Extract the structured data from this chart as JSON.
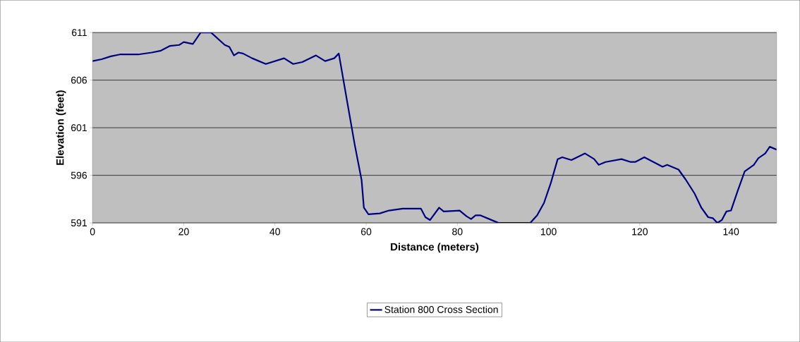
{
  "chart_data": {
    "type": "line",
    "xlabel": "Distance (meters)",
    "ylabel": "Elevation (feet)",
    "xlim": [
      0,
      150
    ],
    "xticks": [
      0,
      20,
      40,
      60,
      80,
      100,
      120,
      140
    ],
    "ylim": [
      591,
      611
    ],
    "yticks": [
      591,
      596,
      601,
      606,
      611
    ],
    "grid": "y",
    "legend": "bottom",
    "series": [
      {
        "name": "Station 800 Cross Section",
        "color": "#000080",
        "x": [
          0,
          2,
          4,
          6,
          10,
          13,
          15,
          17,
          19,
          20,
          22,
          23,
          23.7,
          26,
          29,
          30,
          31,
          32,
          33,
          35,
          38,
          42,
          44,
          46,
          49,
          51,
          53,
          54,
          56,
          57.5,
          59,
          59.5,
          60.5,
          63,
          65,
          68,
          72,
          73,
          74,
          76,
          77,
          80.5,
          82,
          83,
          84,
          85,
          88,
          89,
          96,
          97.5,
          99,
          100.5,
          102,
          103,
          105,
          108,
          110,
          111,
          112.5,
          116,
          118,
          119,
          121,
          123,
          125,
          126,
          128.5,
          130,
          132,
          133.5,
          135,
          136,
          137,
          138,
          139,
          140,
          141.5,
          143,
          145,
          146,
          147.5,
          148.5,
          150
        ],
        "values": [
          608.0,
          608.2,
          608.5,
          608.7,
          608.7,
          608.9,
          609.1,
          609.6,
          609.7,
          610.0,
          609.8,
          610.5,
          611,
          611,
          609.7,
          609.5,
          608.6,
          608.9,
          608.8,
          608.3,
          607.7,
          608.3,
          607.7,
          607.9,
          608.6,
          608.0,
          608.3,
          608.8,
          603.3,
          599.2,
          595.5,
          592.6,
          591.9,
          592.0,
          592.3,
          592.5,
          592.5,
          591.6,
          591.3,
          592.6,
          592.2,
          592.3,
          591.7,
          591.4,
          591.8,
          591.8,
          591.2,
          591,
          591,
          591.8,
          593.1,
          595.2,
          597.7,
          597.9,
          597.6,
          598.3,
          597.7,
          597.1,
          597.4,
          597.7,
          597.4,
          597.4,
          597.9,
          597.4,
          596.9,
          597.1,
          596.6,
          595.6,
          594.1,
          592.6,
          591.6,
          591.5,
          591,
          591.3,
          592.2,
          592.3,
          594.4,
          596.4,
          597.1,
          597.8,
          598.3,
          599,
          598.7
        ]
      }
    ]
  }
}
